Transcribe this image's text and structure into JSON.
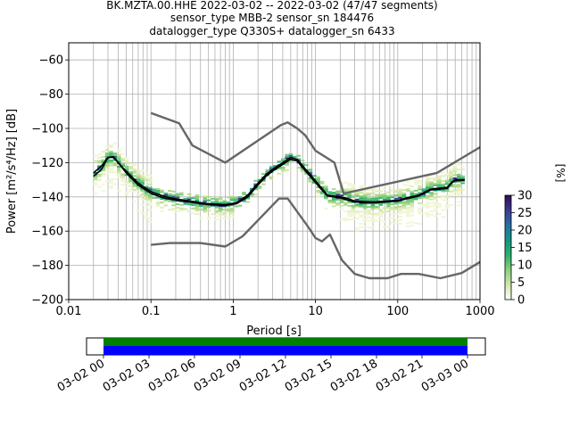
{
  "title": {
    "line1": "BK.MZTA.00.HHE   2022-03-02 -- 2022-03-02  (47/47 segments)",
    "line2": "sensor_type MBB-2 sensor_sn 184476",
    "line3": "datalogger_type Q330S+ datalogger_sn 6433"
  },
  "chart_data": [
    {
      "type": "heatmap",
      "xlabel": "Period [s]",
      "ylabel": "Power [m²/s⁴/Hz] [dB]",
      "x_scale": "log",
      "xlim": [
        0.01,
        1000
      ],
      "ylim": [
        -200,
        -50
      ],
      "x_ticks": [
        {
          "value": 0.01,
          "label": "0.01"
        },
        {
          "value": 0.1,
          "label": "0.1"
        },
        {
          "value": 1,
          "label": "1"
        },
        {
          "value": 10,
          "label": "10"
        },
        {
          "value": 100,
          "label": "100"
        },
        {
          "value": 1000,
          "label": "1000"
        }
      ],
      "y_ticks": [
        {
          "value": -60,
          "label": "−60"
        },
        {
          "value": -80,
          "label": "−80"
        },
        {
          "value": -100,
          "label": "−100"
        },
        {
          "value": -120,
          "label": "−120"
        },
        {
          "value": -140,
          "label": "−140"
        },
        {
          "value": -160,
          "label": "−160"
        },
        {
          "value": -180,
          "label": "−180"
        },
        {
          "value": -200,
          "label": "−200"
        }
      ],
      "grid": true,
      "colorbar": {
        "label": "[%]",
        "min": 0,
        "max": 30,
        "ticks": [
          {
            "value": 0,
            "label": "0"
          },
          {
            "value": 5,
            "label": "5"
          },
          {
            "value": 10,
            "label": "10"
          },
          {
            "value": 15,
            "label": "15"
          },
          {
            "value": 20,
            "label": "20"
          },
          {
            "value": 25,
            "label": "25"
          },
          {
            "value": 30,
            "label": "30"
          }
        ]
      },
      "series": [
        {
          "role": "new-high-noise-model",
          "color": "#666666",
          "points": [
            [
              0.1,
              -91
            ],
            [
              0.22,
              -97
            ],
            [
              0.32,
              -110
            ],
            [
              0.8,
              -120
            ],
            [
              3.8,
              -98
            ],
            [
              4.6,
              -96.5
            ],
            [
              6.0,
              -100
            ],
            [
              7.5,
              -104
            ],
            [
              10,
              -113
            ],
            [
              17,
              -120
            ],
            [
              22,
              -138
            ],
            [
              300,
              -126
            ],
            [
              1000,
              -111
            ]
          ]
        },
        {
          "role": "new-low-noise-model",
          "color": "#666666",
          "points": [
            [
              0.1,
              -168
            ],
            [
              0.17,
              -167
            ],
            [
              0.4,
              -167
            ],
            [
              0.8,
              -169
            ],
            [
              1.3,
              -163
            ],
            [
              3.6,
              -141
            ],
            [
              4.6,
              -141
            ],
            [
              8,
              -157
            ],
            [
              10,
              -164
            ],
            [
              12,
              -166
            ],
            [
              15,
              -162
            ],
            [
              21,
              -177
            ],
            [
              30,
              -185
            ],
            [
              45,
              -187.5
            ],
            [
              75,
              -187.5
            ],
            [
              110,
              -185
            ],
            [
              180,
              -185
            ],
            [
              330,
              -187.5
            ],
            [
              600,
              -184.5
            ],
            [
              1000,
              -178
            ]
          ]
        },
        {
          "role": "mean-psd",
          "color": "#000000",
          "points": [
            [
              0.02,
              -128
            ],
            [
              0.025,
              -124
            ],
            [
              0.03,
              -117
            ],
            [
              0.035,
              -117
            ],
            [
              0.04,
              -120
            ],
            [
              0.05,
              -126
            ],
            [
              0.07,
              -133
            ],
            [
              0.1,
              -138
            ],
            [
              0.15,
              -141
            ],
            [
              0.25,
              -142.5
            ],
            [
              0.5,
              -144.5
            ],
            [
              0.8,
              -145
            ],
            [
              1.1,
              -144
            ],
            [
              1.5,
              -140
            ],
            [
              2,
              -133
            ],
            [
              2.5,
              -128
            ],
            [
              3,
              -125
            ],
            [
              4,
              -121
            ],
            [
              5,
              -118
            ],
            [
              6,
              -119
            ],
            [
              7,
              -123
            ],
            [
              9,
              -129
            ],
            [
              11,
              -134
            ],
            [
              14,
              -139.5
            ],
            [
              20,
              -140.5
            ],
            [
              25,
              -142
            ],
            [
              30,
              -143
            ],
            [
              50,
              -143.5
            ],
            [
              100,
              -142.5
            ],
            [
              130,
              -141
            ],
            [
              180,
              -139.5
            ],
            [
              250,
              -136
            ],
            [
              400,
              -135
            ],
            [
              450,
              -132
            ],
            [
              500,
              -130.5
            ],
            [
              650,
              -130.5
            ]
          ]
        },
        {
          "role": "mode-psd",
          "color": "#000000",
          "points": [
            [
              0.02,
              -126
            ],
            [
              0.025,
              -122
            ],
            [
              0.03,
              -117
            ],
            [
              0.035,
              -116.5
            ],
            [
              0.04,
              -120
            ],
            [
              0.05,
              -125
            ],
            [
              0.07,
              -132
            ],
            [
              0.1,
              -137
            ],
            [
              0.15,
              -140
            ],
            [
              0.25,
              -142
            ],
            [
              0.5,
              -144
            ],
            [
              0.8,
              -144.5
            ],
            [
              1.1,
              -143.5
            ],
            [
              1.5,
              -139
            ],
            [
              2,
              -132
            ],
            [
              2.5,
              -127
            ],
            [
              3,
              -124
            ],
            [
              4,
              -120
            ],
            [
              5,
              -117
            ],
            [
              6,
              -118
            ],
            [
              7,
              -122
            ],
            [
              9,
              -128
            ],
            [
              11,
              -133
            ],
            [
              14,
              -139
            ],
            [
              20,
              -140
            ],
            [
              25,
              -141
            ],
            [
              30,
              -142.5
            ],
            [
              50,
              -143
            ],
            [
              100,
              -142
            ],
            [
              130,
              -140.5
            ],
            [
              180,
              -139
            ],
            [
              250,
              -135.5
            ],
            [
              400,
              -134.5
            ],
            [
              450,
              -131.5
            ],
            [
              500,
              -130
            ],
            [
              650,
              -130
            ]
          ]
        }
      ]
    },
    {
      "type": "bar",
      "orientation": "horizontal",
      "x_ticks": [
        "03-02 00",
        "03-02 03",
        "03-02 06",
        "03-02 09",
        "03-02 12",
        "03-02 15",
        "03-02 18",
        "03-02 21",
        "03-03 00"
      ],
      "xlim": [
        "03-01 22:37",
        "03-03 01:23"
      ],
      "series": [
        {
          "role": "data-availability",
          "color": "#008000",
          "start": "03-02 00",
          "end": "03-03 00"
        },
        {
          "role": "psd-coverage",
          "color": "#0000ff",
          "start": "03-02 00",
          "end": "03-03 00"
        }
      ]
    }
  ]
}
